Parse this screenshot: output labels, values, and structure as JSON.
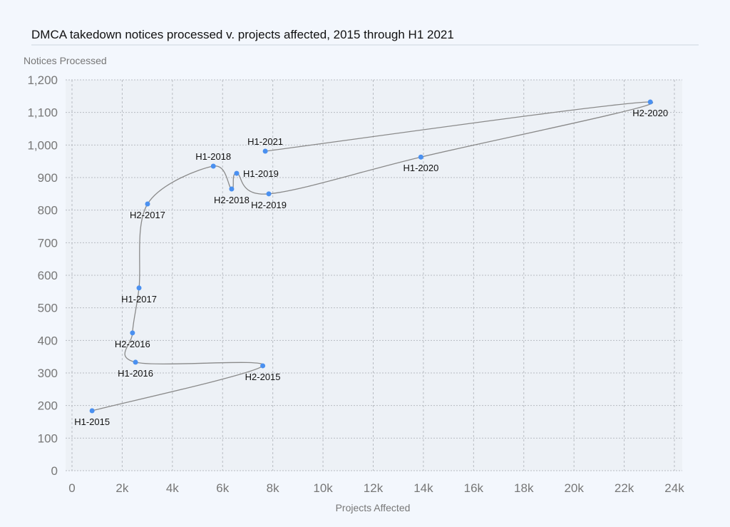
{
  "chart_data": {
    "type": "scatter",
    "title": "DMCA takedown notices processed v. projects affected, 2015 through H1 2021",
    "xlabel": "Projects Affected",
    "ylabel": "Notices Processed",
    "xlim": [
      0,
      24000
    ],
    "ylim": [
      0,
      1200
    ],
    "grid": true,
    "connected": true,
    "x_ticks": [
      {
        "value": 0,
        "label": "0"
      },
      {
        "value": 2000,
        "label": "2k"
      },
      {
        "value": 4000,
        "label": "4k"
      },
      {
        "value": 6000,
        "label": "6k"
      },
      {
        "value": 8000,
        "label": "8k"
      },
      {
        "value": 10000,
        "label": "10k"
      },
      {
        "value": 12000,
        "label": "12k"
      },
      {
        "value": 14000,
        "label": "14k"
      },
      {
        "value": 16000,
        "label": "16k"
      },
      {
        "value": 18000,
        "label": "18k"
      },
      {
        "value": 20000,
        "label": "20k"
      },
      {
        "value": 22000,
        "label": "22k"
      },
      {
        "value": 24000,
        "label": "24k"
      }
    ],
    "y_ticks": [
      {
        "value": 0,
        "label": "0"
      },
      {
        "value": 100,
        "label": "100"
      },
      {
        "value": 200,
        "label": "200"
      },
      {
        "value": 300,
        "label": "300"
      },
      {
        "value": 400,
        "label": "400"
      },
      {
        "value": 500,
        "label": "500"
      },
      {
        "value": 600,
        "label": "600"
      },
      {
        "value": 700,
        "label": "700"
      },
      {
        "value": 800,
        "label": "800"
      },
      {
        "value": 900,
        "label": "900"
      },
      {
        "value": 1000,
        "label": "1,000"
      },
      {
        "value": 1100,
        "label": "1,100"
      },
      {
        "value": 1200,
        "label": "1,200"
      }
    ],
    "points": [
      {
        "label": "H1-2015",
        "x": 800,
        "y": 184,
        "label_side": "below"
      },
      {
        "label": "H2-2015",
        "x": 7600,
        "y": 322,
        "label_side": "below"
      },
      {
        "label": "H1-2016",
        "x": 2530,
        "y": 333,
        "label_side": "below"
      },
      {
        "label": "H2-2016",
        "x": 2410,
        "y": 423,
        "label_side": "below"
      },
      {
        "label": "H1-2017",
        "x": 2670,
        "y": 561,
        "label_side": "below"
      },
      {
        "label": "H2-2017",
        "x": 3010,
        "y": 819,
        "label_side": "below"
      },
      {
        "label": "H1-2018",
        "x": 5630,
        "y": 935,
        "label_side": "above"
      },
      {
        "label": "H2-2018",
        "x": 6360,
        "y": 865,
        "label_side": "below"
      },
      {
        "label": "H1-2019",
        "x": 6560,
        "y": 913,
        "label_side": "right"
      },
      {
        "label": "H2-2019",
        "x": 7840,
        "y": 850,
        "label_side": "below"
      },
      {
        "label": "H1-2020",
        "x": 13900,
        "y": 963,
        "label_side": "below"
      },
      {
        "label": "H2-2020",
        "x": 23040,
        "y": 1132,
        "label_side": "below"
      },
      {
        "label": "H1-2021",
        "x": 7700,
        "y": 981,
        "label_side": "above"
      }
    ],
    "colors": {
      "point": "#4a90f0",
      "line": "#8a8a8a",
      "plot_bg": "#edf1f6",
      "grid": "#b8bcc2"
    }
  }
}
